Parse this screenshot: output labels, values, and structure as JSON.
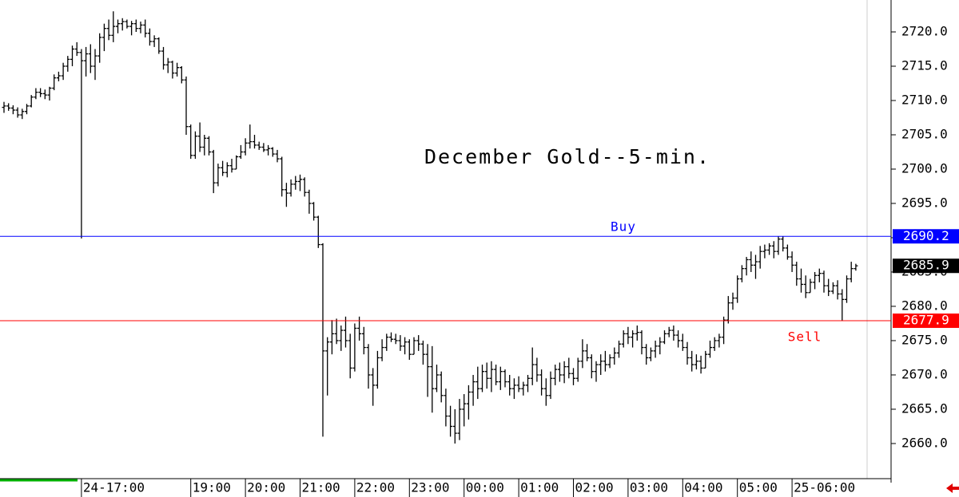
{
  "chart_data": {
    "type": "ohlc",
    "title": "December Gold--5-min.",
    "color": "#000000",
    "categories": [
      null,
      null,
      null,
      null,
      null,
      null,
      null,
      null,
      null,
      null,
      null,
      null,
      null,
      null,
      null,
      null,
      null,
      "24-17:00",
      null,
      null,
      null,
      null,
      null,
      null,
      null,
      null,
      null,
      null,
      null,
      null,
      null,
      null,
      null,
      null,
      null,
      null,
      null,
      null,
      null,
      null,
      null,
      "19:00",
      null,
      null,
      null,
      null,
      null,
      null,
      null,
      null,
      null,
      null,
      null,
      "20:00",
      null,
      null,
      null,
      null,
      null,
      null,
      null,
      null,
      null,
      null,
      null,
      "21:00",
      null,
      null,
      null,
      null,
      null,
      null,
      null,
      null,
      null,
      null,
      null,
      "22:00",
      null,
      null,
      null,
      null,
      null,
      null,
      null,
      null,
      null,
      null,
      null,
      "23:00",
      null,
      null,
      null,
      null,
      null,
      null,
      null,
      null,
      null,
      null,
      null,
      "00:00",
      null,
      null,
      null,
      null,
      null,
      null,
      null,
      null,
      null,
      null,
      null,
      "01:00",
      null,
      null,
      null,
      null,
      null,
      null,
      null,
      null,
      null,
      null,
      null,
      "02:00",
      null,
      null,
      null,
      null,
      null,
      null,
      null,
      null,
      null,
      null,
      null,
      "03:00",
      null,
      null,
      null,
      null,
      null,
      null,
      null,
      null,
      null,
      null,
      null,
      "04:00",
      null,
      null,
      null,
      null,
      null,
      null,
      null,
      null,
      null,
      null,
      null,
      "05:00",
      null,
      null,
      null,
      null,
      null,
      null,
      null,
      null,
      null,
      null,
      null,
      "25-06:00",
      null,
      null,
      null,
      null,
      null,
      null,
      null,
      null,
      null,
      null,
      null,
      null,
      null,
      null
    ],
    "open": [
      2709.0,
      2709.2,
      2708.9,
      2708.6,
      2707.9,
      2708.4,
      2709.2,
      2710.5,
      2711.2,
      2711.0,
      2710.8,
      2711.8,
      2713.3,
      2713.6,
      2715.0,
      2716.0,
      2717.5,
      2717.0,
      2715.8,
      2716.8,
      2715.0,
      2716.5,
      2719.2,
      2720.5,
      2719.5,
      2720.8,
      2721.2,
      2721.5,
      2720.8,
      2721.2,
      2720.5,
      2721.0,
      2719.8,
      2718.6,
      2719.0,
      2717.2,
      2715.2,
      2715.6,
      2714.0,
      2714.8,
      2713.0,
      2706.2,
      2702.0,
      2704.8,
      2703.2,
      2704.5,
      2702.5,
      2698.0,
      2700.2,
      2699.5,
      2700.5,
      2700.0,
      2701.8,
      2702.5,
      2703.8,
      2704.0,
      2703.5,
      2703.2,
      2702.8,
      2703.0,
      2702.2,
      2701.5,
      2697.0,
      2696.5,
      2697.8,
      2698.2,
      2698.5,
      2696.6,
      2695.0,
      2693.0,
      2689.0,
      2673.5,
      2674.8,
      2676.0,
      2675.0,
      2676.5,
      2675.0,
      2671.0,
      2676.8,
      2676.0,
      2674.0,
      2670.0,
      2668.5,
      2672.5,
      2674.0,
      2675.5,
      2675.2,
      2675.0,
      2674.2,
      2674.8,
      2673.0,
      2675.0,
      2674.5,
      2673.0,
      2671.2,
      2668.0,
      2670.0,
      2667.0,
      2664.0,
      2662.5,
      2661.5,
      2665.0,
      2665.8,
      2667.5,
      2669.0,
      2668.0,
      2670.5,
      2669.5,
      2670.8,
      2669.0,
      2670.5,
      2669.0,
      2668.0,
      2668.5,
      2668.0,
      2668.5,
      2669.5,
      2671.5,
      2670.0,
      2668.0,
      2667.0,
      2669.5,
      2670.8,
      2670.0,
      2671.2,
      2670.2,
      2669.5,
      2672.0,
      2673.5,
      2672.5,
      2670.5,
      2671.5,
      2672.0,
      2671.5,
      2672.5,
      2673.2,
      2674.5,
      2676.0,
      2675.5,
      2676.0,
      2676.2,
      2674.0,
      2672.5,
      2673.5,
      2674.2,
      2674.8,
      2676.0,
      2676.5,
      2675.8,
      2675.0,
      2674.0,
      2672.5,
      2671.5,
      2672.0,
      2671.0,
      2673.0,
      2674.0,
      2675.0,
      2675.5,
      2678.0,
      2680.5,
      2681.2,
      2684.0,
      2685.5,
      2686.8,
      2686.0,
      2686.5,
      2688.0,
      2688.2,
      2688.8,
      2688.0,
      2689.8,
      2688.5,
      2687.2,
      2686.0,
      2684.0,
      2683.2,
      2682.0,
      2683.5,
      2684.5,
      2684.8,
      2683.0,
      2682.2,
      2683.0,
      2681.8,
      2681.0,
      2684.0,
      2685.5
    ],
    "high": [
      2709.8,
      2709.6,
      2709.3,
      2709.0,
      2708.8,
      2709.5,
      2710.8,
      2711.8,
      2711.8,
      2711.6,
      2712.0,
      2713.8,
      2714.2,
      2715.5,
      2716.5,
      2718.0,
      2718.5,
      2717.5,
      2717.8,
      2718.2,
      2717.5,
      2719.8,
      2721.2,
      2721.8,
      2723.0,
      2721.8,
      2722.0,
      2721.8,
      2721.6,
      2721.8,
      2721.5,
      2721.8,
      2720.5,
      2719.5,
      2719.2,
      2717.8,
      2716.2,
      2715.8,
      2715.5,
      2715.0,
      2713.5,
      2706.5,
      2705.5,
      2706.8,
      2705.0,
      2704.8,
      2702.8,
      2700.8,
      2701.2,
      2701.0,
      2701.5,
      2702.0,
      2703.5,
      2704.5,
      2706.5,
      2705.0,
      2704.0,
      2703.8,
      2703.5,
      2703.2,
      2702.8,
      2701.8,
      2698.0,
      2698.5,
      2699.0,
      2699.2,
      2698.8,
      2697.0,
      2695.2,
      2693.2,
      2689.2,
      2675.5,
      2678.0,
      2678.2,
      2677.2,
      2678.5,
      2676.0,
      2677.5,
      2678.5,
      2677.0,
      2674.5,
      2671.0,
      2673.5,
      2675.2,
      2676.0,
      2676.2,
      2676.0,
      2675.8,
      2675.5,
      2675.2,
      2675.5,
      2675.8,
      2675.0,
      2674.5,
      2674.2,
      2671.5,
      2670.5,
      2668.0,
      2665.5,
      2665.0,
      2666.5,
      2667.2,
      2668.5,
      2670.0,
      2671.2,
      2671.5,
      2671.8,
      2672.0,
      2671.5,
      2671.2,
      2670.8,
      2670.0,
      2669.5,
      2669.8,
      2669.0,
      2670.0,
      2674.0,
      2672.5,
      2670.8,
      2669.5,
      2670.5,
      2671.5,
      2671.8,
      2672.0,
      2672.5,
      2671.0,
      2672.5,
      2675.2,
      2674.5,
      2673.0,
      2672.0,
      2673.0,
      2673.5,
      2673.0,
      2674.0,
      2675.0,
      2676.5,
      2677.0,
      2676.5,
      2677.2,
      2676.5,
      2674.5,
      2674.0,
      2675.0,
      2675.5,
      2676.5,
      2677.0,
      2677.2,
      2676.5,
      2676.0,
      2674.8,
      2673.5,
      2673.0,
      2672.8,
      2673.5,
      2675.0,
      2675.5,
      2676.0,
      2678.5,
      2681.5,
      2682.0,
      2684.5,
      2686.0,
      2687.2,
      2688.0,
      2687.5,
      2688.8,
      2689.0,
      2689.2,
      2689.5,
      2690.2,
      2690.2,
      2689.0,
      2688.0,
      2686.5,
      2685.5,
      2684.5,
      2684.0,
      2685.0,
      2685.5,
      2685.2,
      2684.0,
      2683.5,
      2683.8,
      2682.5,
      2684.5,
      2686.5,
      2686.2
    ],
    "low": [
      2708.2,
      2708.5,
      2708.0,
      2707.5,
      2707.3,
      2708.0,
      2709.0,
      2710.2,
      2710.5,
      2710.2,
      2710.0,
      2711.5,
      2712.8,
      2713.0,
      2714.2,
      2715.0,
      2716.5,
      2689.9,
      2713.5,
      2714.0,
      2713.0,
      2715.5,
      2717.2,
      2718.8,
      2718.5,
      2719.8,
      2720.2,
      2720.5,
      2719.5,
      2720.0,
      2719.8,
      2719.2,
      2718.0,
      2717.8,
      2716.8,
      2714.5,
      2714.0,
      2713.2,
      2713.5,
      2712.5,
      2705.0,
      2701.5,
      2701.5,
      2702.5,
      2702.0,
      2702.0,
      2696.5,
      2697.5,
      2699.0,
      2698.8,
      2699.5,
      2700.0,
      2701.5,
      2702.0,
      2703.0,
      2703.0,
      2702.8,
      2702.5,
      2702.0,
      2701.8,
      2701.0,
      2696.0,
      2694.5,
      2696.0,
      2697.0,
      2696.8,
      2696.0,
      2693.5,
      2692.5,
      2688.5,
      2661.0,
      2667.0,
      2673.0,
      2674.5,
      2673.5,
      2674.0,
      2669.5,
      2670.5,
      2675.0,
      2673.0,
      2668.0,
      2665.5,
      2668.0,
      2672.0,
      2673.5,
      2674.8,
      2674.5,
      2673.5,
      2673.0,
      2672.2,
      2673.0,
      2673.5,
      2671.5,
      2666.8,
      2664.5,
      2667.5,
      2666.0,
      2662.5,
      2661.0,
      2660.0,
      2660.5,
      2662.5,
      2663.5,
      2665.5,
      2666.5,
      2667.5,
      2668.0,
      2667.5,
      2668.5,
      2667.8,
      2668.2,
      2667.0,
      2666.5,
      2667.5,
      2667.0,
      2667.5,
      2668.5,
      2669.0,
      2667.0,
      2665.5,
      2666.5,
      2668.5,
      2669.0,
      2668.8,
      2669.5,
      2668.5,
      2669.0,
      2671.0,
      2672.0,
      2669.5,
      2669.0,
      2670.0,
      2670.5,
      2671.0,
      2671.5,
      2672.5,
      2674.0,
      2674.5,
      2674.0,
      2675.0,
      2673.0,
      2671.5,
      2672.0,
      2672.5,
      2673.0,
      2674.5,
      2675.5,
      2675.0,
      2674.0,
      2673.5,
      2671.5,
      2670.5,
      2670.8,
      2670.2,
      2671.0,
      2672.5,
      2673.5,
      2674.0,
      2674.5,
      2677.5,
      2679.5,
      2680.5,
      2683.5,
      2684.5,
      2685.0,
      2684.0,
      2685.5,
      2687.0,
      2687.5,
      2687.0,
      2687.5,
      2688.0,
      2686.8,
      2685.0,
      2683.0,
      2682.0,
      2681.2,
      2682.0,
      2682.5,
      2683.5,
      2682.0,
      2681.5,
      2681.8,
      2681.0,
      2677.9,
      2680.5,
      2683.5,
      2685.2
    ],
    "close": [
      2709.2,
      2708.9,
      2708.6,
      2707.9,
      2708.4,
      2709.2,
      2710.5,
      2711.2,
      2711.0,
      2710.8,
      2711.8,
      2713.3,
      2713.6,
      2715.0,
      2716.0,
      2717.5,
      2717.0,
      2715.8,
      2716.8,
      2715.0,
      2716.5,
      2719.2,
      2720.5,
      2719.5,
      2720.8,
      2721.2,
      2721.5,
      2720.8,
      2721.2,
      2720.5,
      2721.0,
      2719.8,
      2718.6,
      2719.0,
      2717.2,
      2715.2,
      2715.6,
      2714.0,
      2714.8,
      2713.0,
      2706.2,
      2702.0,
      2704.8,
      2703.2,
      2704.5,
      2702.5,
      2698.0,
      2700.2,
      2699.5,
      2700.5,
      2700.0,
      2701.8,
      2702.5,
      2703.8,
      2704.0,
      2703.5,
      2703.2,
      2702.8,
      2703.0,
      2702.2,
      2701.5,
      2697.0,
      2696.5,
      2697.8,
      2698.2,
      2698.5,
      2696.6,
      2695.0,
      2693.0,
      2689.0,
      2673.5,
      2674.8,
      2676.0,
      2675.0,
      2676.5,
      2675.0,
      2671.0,
      2676.8,
      2676.0,
      2674.0,
      2670.0,
      2668.5,
      2672.5,
      2674.0,
      2675.5,
      2675.2,
      2675.0,
      2674.2,
      2674.8,
      2673.0,
      2675.0,
      2674.5,
      2673.0,
      2671.2,
      2668.0,
      2670.0,
      2667.0,
      2664.0,
      2662.5,
      2661.5,
      2665.0,
      2665.8,
      2667.5,
      2669.0,
      2668.0,
      2670.5,
      2669.5,
      2670.8,
      2669.0,
      2670.5,
      2669.0,
      2668.0,
      2668.5,
      2668.0,
      2668.5,
      2669.5,
      2671.5,
      2670.0,
      2668.0,
      2667.0,
      2669.5,
      2670.8,
      2670.0,
      2671.2,
      2670.2,
      2669.5,
      2672.0,
      2673.5,
      2672.5,
      2670.5,
      2671.5,
      2672.0,
      2671.5,
      2672.5,
      2673.2,
      2674.5,
      2676.0,
      2675.5,
      2676.0,
      2676.2,
      2674.0,
      2672.5,
      2673.5,
      2674.2,
      2674.8,
      2676.0,
      2676.5,
      2675.8,
      2675.0,
      2674.0,
      2672.5,
      2671.5,
      2672.0,
      2671.0,
      2673.0,
      2674.0,
      2675.0,
      2675.5,
      2678.0,
      2680.5,
      2681.2,
      2684.0,
      2685.5,
      2686.8,
      2686.0,
      2686.5,
      2688.0,
      2688.2,
      2688.8,
      2688.0,
      2689.8,
      2688.5,
      2687.2,
      2686.0,
      2684.0,
      2683.2,
      2682.0,
      2683.5,
      2684.5,
      2684.8,
      2683.0,
      2682.2,
      2683.0,
      2681.8,
      2681.0,
      2684.0,
      2685.5,
      2685.9
    ],
    "ylim": [
      2654.88,
      2724.65
    ],
    "yticks": [
      {
        "value": 2660,
        "label": "2660.0"
      },
      {
        "value": 2665,
        "label": "2665.0"
      },
      {
        "value": 2670,
        "label": "2670.0"
      },
      {
        "value": 2675,
        "label": "2675.0"
      },
      {
        "value": 2680,
        "label": "2680.0"
      },
      {
        "value": 2685,
        "label": "2685.0"
      },
      {
        "value": 2690,
        "label": "2690.0"
      },
      {
        "value": 2695,
        "label": "2695.0"
      },
      {
        "value": 2700,
        "label": "2700.0"
      },
      {
        "value": 2705,
        "label": "2705.0"
      },
      {
        "value": 2710,
        "label": "2710.0"
      },
      {
        "value": 2715,
        "label": "2715.0"
      },
      {
        "value": 2720,
        "label": "2720.0"
      }
    ],
    "lines": [
      {
        "name": "Buy",
        "value": 2690.2,
        "color": "#0000ff"
      },
      {
        "name": "Sell",
        "value": 2677.9,
        "color": "#ff0000"
      }
    ]
  }
}
